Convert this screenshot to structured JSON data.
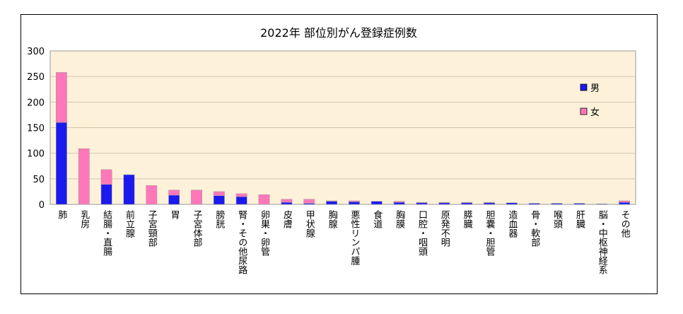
{
  "chart_data": {
    "type": "bar",
    "stacked": true,
    "title": "2022年  部位別がん登録症例数",
    "xlabel": "",
    "ylabel": "",
    "ylim": [
      0,
      300
    ],
    "yticks": [
      0,
      50,
      100,
      150,
      200,
      250,
      300
    ],
    "grid": true,
    "legend_position": "right",
    "colors": {
      "plot_background": "#fdf1d9",
      "男": "#1a1aee",
      "女": "#ff77bb"
    },
    "categories": [
      "肺",
      "乳房",
      "結腸・直腸",
      "前立腺",
      "子宮頸部",
      "胃",
      "子宮体部",
      "膀胱",
      "腎・その他尿路",
      "卵巣・卵管",
      "皮膚",
      "甲状腺",
      "胸腺",
      "悪性リンパ腫",
      "食道",
      "胸膜",
      "口腔・咽頭",
      "原発不明",
      "膵臓",
      "胆嚢・胆管",
      "造血器",
      "骨・軟部",
      "喉頭",
      "肝臓",
      "脳・中枢神経系",
      "その他"
    ],
    "series": [
      {
        "name": "男",
        "values": [
          160,
          0,
          39,
          58,
          0,
          18,
          0,
          17,
          15,
          0,
          4,
          2,
          6,
          5,
          6,
          4,
          3,
          3,
          3,
          3,
          3,
          2,
          2,
          2,
          1,
          4
        ]
      },
      {
        "name": "女",
        "values": [
          98,
          109,
          29,
          0,
          37,
          10,
          28,
          8,
          6,
          19,
          6,
          8,
          1,
          2,
          0,
          2,
          1,
          1,
          1,
          1,
          0,
          0,
          0,
          0,
          0,
          3
        ]
      }
    ]
  }
}
